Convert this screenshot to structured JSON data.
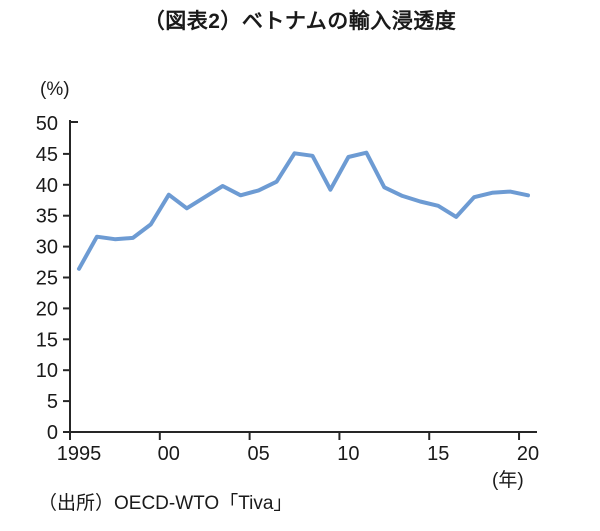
{
  "chart_data": {
    "type": "line",
    "title": "（図表2）ベトナムの輸入浸透度",
    "y_label_unit": "(%)",
    "x_label_unit": "(年)",
    "source": "（出所）OECD-WTO「Tiva」",
    "x": [
      1995,
      1996,
      1997,
      1998,
      1999,
      2000,
      2001,
      2002,
      2003,
      2004,
      2005,
      2006,
      2007,
      2008,
      2009,
      2010,
      2011,
      2012,
      2013,
      2014,
      2015,
      2016,
      2017,
      2018,
      2019,
      2020
    ],
    "values": [
      26.4,
      31.6,
      31.2,
      31.4,
      33.6,
      38.4,
      36.2,
      38.0,
      39.8,
      38.3,
      39.1,
      40.5,
      45.1,
      44.7,
      39.2,
      44.5,
      45.2,
      39.6,
      38.2,
      37.3,
      36.6,
      34.8,
      38.0,
      38.7,
      38.9,
      38.3
    ],
    "x_tick_labels": [
      "1995",
      "00",
      "05",
      "10",
      "15",
      "20"
    ],
    "x_tick_years": [
      1995,
      2000,
      2005,
      2010,
      2015,
      2020
    ],
    "y_ticks": [
      0,
      5,
      10,
      15,
      20,
      25,
      30,
      35,
      40,
      45,
      50
    ],
    "ylim": [
      0,
      50
    ],
    "grid": false,
    "legend": false,
    "line_color": "#6D9BD3",
    "axis_color": "#262626"
  }
}
